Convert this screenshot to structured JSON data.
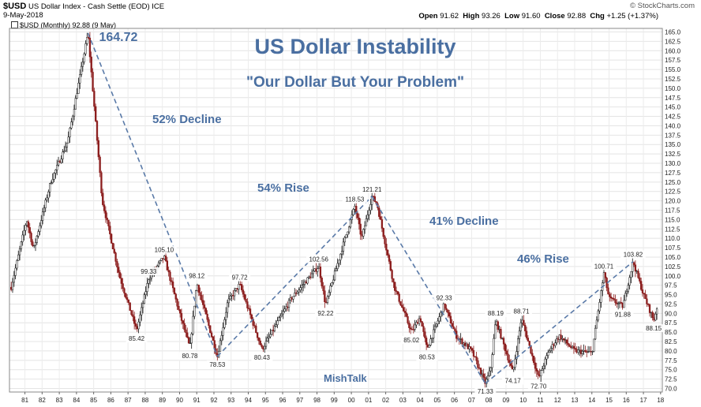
{
  "header": {
    "symbol": "$USD",
    "description": "US Dollar Index - Cash Settle (EOD)",
    "exchange": "ICE",
    "date": "9-May-2018",
    "watermark": "© StockCharts.com",
    "series_label": "$USD (Monthly) 92.88 (9 May)",
    "ohlc": {
      "open_label": "Open",
      "open": "91.62",
      "high_label": "High",
      "high": "93.26",
      "low_label": "Low",
      "low": "91.60",
      "close_label": "Close",
      "close": "92.88",
      "chg_label": "Chg",
      "chg": "+1.25 (+1.37%)"
    }
  },
  "colors": {
    "up": "#111111",
    "down": "#8b1c1c",
    "annotation": "#4a6fa1",
    "trendline": "#5a7aa8"
  },
  "chart_data": {
    "type": "candlestick",
    "title": "US Dollar Instability",
    "subtitle": "\"Our Dollar But Your Problem\"",
    "watermark": "MishTalk",
    "x_ticks": [
      "81",
      "82",
      "83",
      "84",
      "85",
      "86",
      "87",
      "88",
      "89",
      "90",
      "91",
      "92",
      "93",
      "94",
      "95",
      "96",
      "97",
      "98",
      "99",
      "00",
      "01",
      "02",
      "03",
      "04",
      "05",
      "06",
      "07",
      "08",
      "09",
      "10",
      "11",
      "12",
      "13",
      "14",
      "15",
      "16",
      "17",
      "18"
    ],
    "y_ticks": [
      "70.0",
      "72.5",
      "75.0",
      "77.5",
      "80.0",
      "82.5",
      "85.0",
      "87.5",
      "90.0",
      "92.5",
      "95.0",
      "97.5",
      "100.0",
      "102.5",
      "105.0",
      "107.5",
      "110.0",
      "112.5",
      "115.0",
      "117.5",
      "120.0",
      "122.5",
      "125.0",
      "127.5",
      "130.0",
      "132.5",
      "135.0",
      "137.5",
      "140.0",
      "142.5",
      "145.0",
      "147.5",
      "150.0",
      "152.5",
      "155.0",
      "157.5",
      "160.0",
      "162.5",
      "165.0"
    ],
    "ylim": [
      70,
      165
    ],
    "xlim": [
      1980.6,
      2018.6
    ],
    "y_axis_position": "right",
    "grid": true,
    "pivots": [
      {
        "x": 1980.7,
        "y": 97
      },
      {
        "x": 1981.6,
        "y": 115
      },
      {
        "x": 1982.0,
        "y": 107
      },
      {
        "x": 1983.0,
        "y": 125
      },
      {
        "x": 1984.0,
        "y": 136
      },
      {
        "x": 1985.17,
        "y": 164.72
      },
      {
        "x": 1986.0,
        "y": 120
      },
      {
        "x": 1987.0,
        "y": 100
      },
      {
        "x": 1988.0,
        "y": 85.42
      },
      {
        "x": 1988.7,
        "y": 99.33
      },
      {
        "x": 1989.6,
        "y": 105.1
      },
      {
        "x": 1990.5,
        "y": 90
      },
      {
        "x": 1991.1,
        "y": 80.78
      },
      {
        "x": 1991.5,
        "y": 98.12
      },
      {
        "x": 1992.7,
        "y": 78.53
      },
      {
        "x": 1993.3,
        "y": 93
      },
      {
        "x": 1994.0,
        "y": 97.72
      },
      {
        "x": 1995.3,
        "y": 80.43
      },
      {
        "x": 1996.0,
        "y": 86
      },
      {
        "x": 1997.0,
        "y": 94
      },
      {
        "x": 1998.6,
        "y": 102.56
      },
      {
        "x": 1999.0,
        "y": 92.22
      },
      {
        "x": 2000.0,
        "y": 108
      },
      {
        "x": 2000.7,
        "y": 118.53
      },
      {
        "x": 2001.1,
        "y": 110
      },
      {
        "x": 2001.7,
        "y": 121.21
      },
      {
        "x": 2002.0,
        "y": 119
      },
      {
        "x": 2003.0,
        "y": 97
      },
      {
        "x": 2004.0,
        "y": 85.02
      },
      {
        "x": 2004.5,
        "y": 89
      },
      {
        "x": 2004.9,
        "y": 80.53
      },
      {
        "x": 2005.9,
        "y": 92.33
      },
      {
        "x": 2006.6,
        "y": 84
      },
      {
        "x": 2007.5,
        "y": 80
      },
      {
        "x": 2008.3,
        "y": 71.33
      },
      {
        "x": 2008.6,
        "y": 75
      },
      {
        "x": 2008.9,
        "y": 88.19
      },
      {
        "x": 2009.9,
        "y": 74.17
      },
      {
        "x": 2010.4,
        "y": 88.71
      },
      {
        "x": 2011.4,
        "y": 72.7
      },
      {
        "x": 2012.0,
        "y": 80
      },
      {
        "x": 2012.6,
        "y": 84
      },
      {
        "x": 2013.5,
        "y": 80
      },
      {
        "x": 2014.5,
        "y": 79.5
      },
      {
        "x": 2015.2,
        "y": 100.71
      },
      {
        "x": 2015.5,
        "y": 94
      },
      {
        "x": 2016.3,
        "y": 91.88
      },
      {
        "x": 2016.9,
        "y": 103.82
      },
      {
        "x": 2017.5,
        "y": 95
      },
      {
        "x": 2018.1,
        "y": 88.15
      },
      {
        "x": 2018.35,
        "y": 92.88
      }
    ],
    "point_labels": [
      {
        "text": "164.72",
        "x": 1985.17,
        "y": 164.72,
        "big": true
      },
      {
        "text": "85.42",
        "x": 1988.0,
        "y": 85.42
      },
      {
        "text": "99.33",
        "x": 1988.7,
        "y": 99.33
      },
      {
        "text": "105.10",
        "x": 1989.6,
        "y": 105.1
      },
      {
        "text": "80.78",
        "x": 1991.1,
        "y": 80.78
      },
      {
        "text": "98.12",
        "x": 1991.5,
        "y": 98.12
      },
      {
        "text": "78.53",
        "x": 1992.7,
        "y": 78.53
      },
      {
        "text": "97.72",
        "x": 1994.0,
        "y": 97.72
      },
      {
        "text": "80.43",
        "x": 1995.3,
        "y": 80.43
      },
      {
        "text": "102.56",
        "x": 1998.6,
        "y": 102.56
      },
      {
        "text": "92.22",
        "x": 1999.0,
        "y": 92.22
      },
      {
        "text": "118.53",
        "x": 2000.7,
        "y": 118.53
      },
      {
        "text": "121.21",
        "x": 2001.7,
        "y": 121.21
      },
      {
        "text": "85.02",
        "x": 2004.0,
        "y": 85.02
      },
      {
        "text": "80.53",
        "x": 2004.9,
        "y": 80.53
      },
      {
        "text": "92.33",
        "x": 2005.9,
        "y": 92.33
      },
      {
        "text": "71.33",
        "x": 2008.3,
        "y": 71.33
      },
      {
        "text": "88.19",
        "x": 2008.9,
        "y": 88.19
      },
      {
        "text": "74.17",
        "x": 2009.9,
        "y": 74.17
      },
      {
        "text": "88.71",
        "x": 2010.4,
        "y": 88.71
      },
      {
        "text": "72.70",
        "x": 2011.4,
        "y": 72.7
      },
      {
        "text": "100.71",
        "x": 2015.2,
        "y": 100.71
      },
      {
        "text": "91.88",
        "x": 2016.3,
        "y": 91.88
      },
      {
        "text": "103.82",
        "x": 2016.9,
        "y": 103.82
      },
      {
        "text": "88.15",
        "x": 2018.1,
        "y": 88.15
      }
    ],
    "trendlines": [
      {
        "label": "52% Decline",
        "from": {
          "x": 1985.17,
          "y": 164.72
        },
        "to": {
          "x": 1992.7,
          "y": 78.53
        }
      },
      {
        "label": "54% Rise",
        "from": {
          "x": 1992.7,
          "y": 78.53
        },
        "to": {
          "x": 2001.7,
          "y": 121.21
        }
      },
      {
        "label": "41% Decline",
        "from": {
          "x": 2001.7,
          "y": 121.21
        },
        "to": {
          "x": 2008.3,
          "y": 71.33
        }
      },
      {
        "label": "46% Rise",
        "from": {
          "x": 2008.3,
          "y": 71.33
        },
        "to": {
          "x": 2016.9,
          "y": 103.82
        }
      }
    ]
  }
}
